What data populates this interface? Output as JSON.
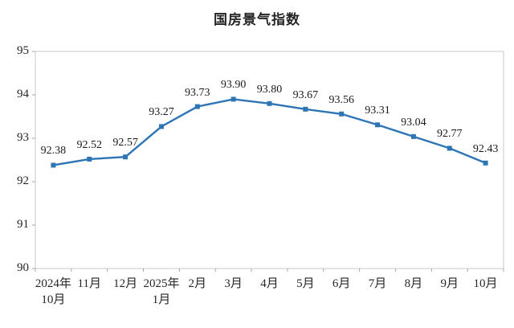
{
  "title": "国房景气指数",
  "chart_data": {
    "type": "line",
    "title": "国房景气指数",
    "categories": [
      [
        "2024年",
        "10月"
      ],
      [
        "11月"
      ],
      [
        "12月"
      ],
      [
        "2025年",
        "1月"
      ],
      [
        "2月"
      ],
      [
        "3月"
      ],
      [
        "4月"
      ],
      [
        "5月"
      ],
      [
        "6月"
      ],
      [
        "7月"
      ],
      [
        "8月"
      ],
      [
        "9月"
      ],
      [
        "10月"
      ]
    ],
    "values": [
      92.38,
      92.52,
      92.57,
      93.27,
      93.73,
      93.9,
      93.8,
      93.67,
      93.56,
      93.31,
      93.04,
      92.77,
      92.43
    ],
    "value_labels": [
      "92.38",
      "92.52",
      "92.57",
      "93.27",
      "93.73",
      "93.90",
      "93.80",
      "93.67",
      "93.56",
      "93.31",
      "93.04",
      "92.77",
      "92.43"
    ],
    "ylim": [
      90,
      95
    ],
    "ytick_labels": [
      "90",
      "91",
      "92",
      "93",
      "94",
      "95"
    ],
    "xlabel": "",
    "ylabel": "",
    "grid": false,
    "legend": "none",
    "marker": "square",
    "line_color": "#2E75B6",
    "axis_border_color": "#c9c9c9",
    "tick_color": "#a6a6a6",
    "text_color": "#262626"
  }
}
